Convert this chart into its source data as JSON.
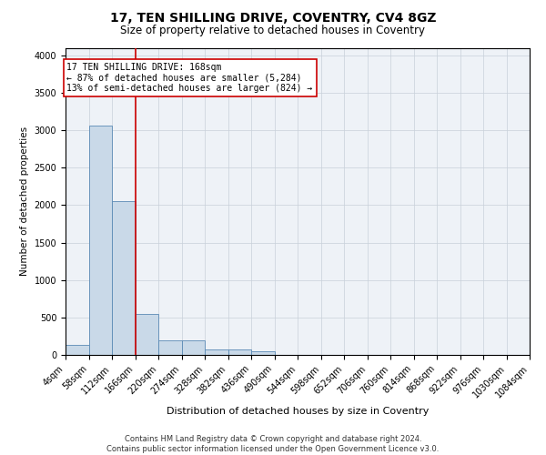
{
  "title": "17, TEN SHILLING DRIVE, COVENTRY, CV4 8GZ",
  "subtitle": "Size of property relative to detached houses in Coventry",
  "xlabel": "Distribution of detached houses by size in Coventry",
  "ylabel": "Number of detached properties",
  "footer_line1": "Contains HM Land Registry data © Crown copyright and database right 2024.",
  "footer_line2": "Contains public sector information licensed under the Open Government Licence v3.0.",
  "annotation_line1": "17 TEN SHILLING DRIVE: 168sqm",
  "annotation_line2": "← 87% of detached houses are smaller (5,284)",
  "annotation_line3": "13% of semi-detached houses are larger (824) →",
  "property_size": 168,
  "bin_edges": [
    4,
    58,
    112,
    166,
    220,
    274,
    328,
    382,
    436,
    490,
    544,
    598,
    652,
    706,
    760,
    814,
    868,
    922,
    976,
    1030,
    1084
  ],
  "bar_values": [
    130,
    3060,
    2050,
    550,
    195,
    195,
    75,
    75,
    50,
    0,
    0,
    0,
    0,
    0,
    0,
    0,
    0,
    0,
    0,
    0
  ],
  "bar_color": "#c9d9e8",
  "bar_edge_color": "#5a8ab5",
  "marker_color": "#cc0000",
  "background_color": "#eef2f7",
  "grid_color": "#c8d0da",
  "ylim": [
    0,
    4100
  ],
  "yticks": [
    0,
    500,
    1000,
    1500,
    2000,
    2500,
    3000,
    3500,
    4000
  ],
  "title_fontsize": 10,
  "subtitle_fontsize": 8.5,
  "ylabel_fontsize": 7.5,
  "xlabel_fontsize": 8,
  "tick_fontsize": 7,
  "footer_fontsize": 6,
  "annotation_fontsize": 7
}
